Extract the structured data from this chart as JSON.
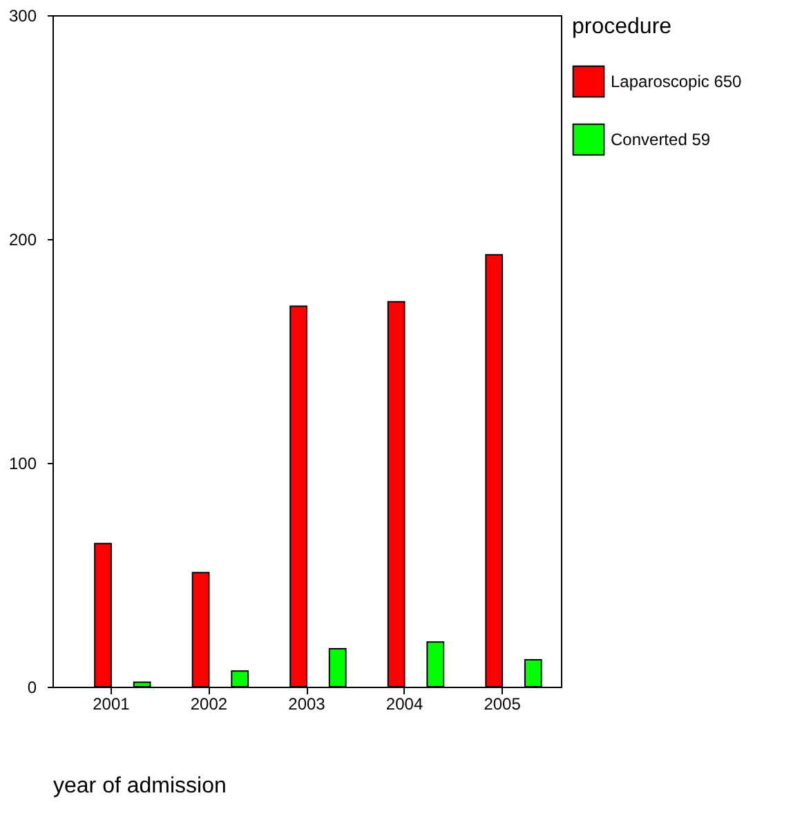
{
  "chart_data": {
    "type": "bar",
    "xlabel": "year of admission",
    "legend_title": "procedure",
    "categories": [
      "2001",
      "2002",
      "2003",
      "2004",
      "2005"
    ],
    "series": [
      {
        "name": "Laparoscopic 650",
        "color": "#ff0000",
        "values": [
          64,
          51,
          170,
          172,
          193
        ]
      },
      {
        "name": "Converted 59",
        "color": "#00ff00",
        "values": [
          2,
          7,
          17,
          20,
          12
        ]
      }
    ],
    "ylim": [
      0,
      300
    ],
    "yticks": [
      0,
      100,
      200,
      300
    ],
    "grid": false,
    "legend": "right"
  }
}
